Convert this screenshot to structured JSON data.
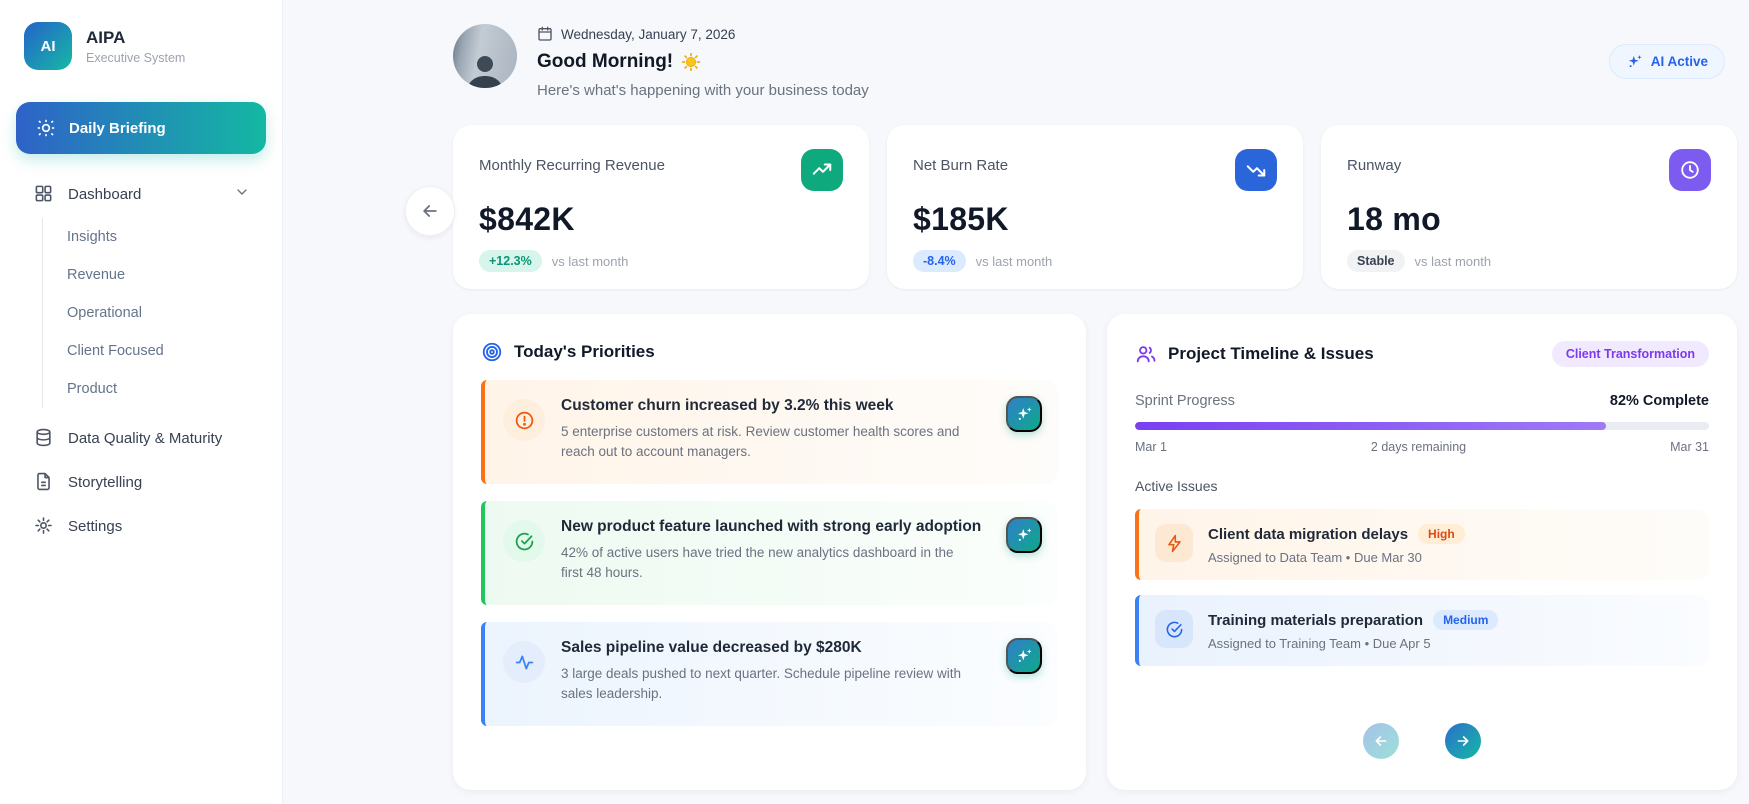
{
  "sidebar": {
    "logo_text": "AI",
    "title": "AIPA",
    "subtitle": "Executive System",
    "active_item": {
      "label": "Daily Briefing",
      "icon": "sun-icon"
    },
    "dashboard": {
      "label": "Dashboard",
      "icon": "grid-icon",
      "children": [
        "Insights",
        "Revenue",
        "Operational",
        "Client Focused",
        "Product"
      ]
    },
    "items": [
      {
        "label": "Data Quality & Maturity",
        "icon": "database-icon"
      },
      {
        "label": "Storytelling",
        "icon": "file-text-icon"
      },
      {
        "label": "Settings",
        "icon": "gear-icon"
      }
    ]
  },
  "header": {
    "date": "Wednesday, January 7, 2026",
    "date_icon": "calendar-icon",
    "greeting": "Good Morning!",
    "greeting_icon": "sun-emoji",
    "subtitle": "Here's what's happening with your business today",
    "ai_badge": "AI Active",
    "ai_badge_icon": "sparkles-icon"
  },
  "metrics": [
    {
      "label": "Monthly Recurring Revenue",
      "value": "$842K",
      "delta": "+12.3%",
      "note": "vs last month",
      "icon": "trending-up-icon",
      "accent": "#0fa97e"
    },
    {
      "label": "Net Burn Rate",
      "value": "$185K",
      "delta": "-8.4%",
      "note": "vs last month",
      "icon": "trending-down-icon",
      "accent": "#2a66d9"
    },
    {
      "label": "Runway",
      "value": "18 mo",
      "delta": "Stable",
      "note": "vs last month",
      "icon": "clock-icon",
      "accent": "#7c5cf0"
    }
  ],
  "priorities": {
    "title": "Today's Priorities",
    "title_icon": "target-icon",
    "items": [
      {
        "title": "Customer churn increased by 3.2% this week",
        "description": "5 enterprise customers at risk. Review customer health scores and reach out to account managers.",
        "severity": "warning",
        "icon": "alert-circle-icon",
        "action_icon": "sparkles-icon"
      },
      {
        "title": "New product feature launched with strong early adoption",
        "description": "42% of active users have tried the new analytics dashboard in the first 48 hours.",
        "severity": "success",
        "icon": "check-circle-icon",
        "action_icon": "sparkles-icon"
      },
      {
        "title": "Sales pipeline value decreased by $280K",
        "description": "3 large deals pushed to next quarter. Schedule pipeline review with sales leadership.",
        "severity": "info",
        "icon": "activity-icon",
        "action_icon": "sparkles-icon"
      }
    ]
  },
  "project": {
    "title": "Project Timeline & Issues",
    "title_icon": "users-icon",
    "badge": "Client Transformation",
    "sprint_label": "Sprint Progress",
    "sprint_complete": "82% Complete",
    "progress_pct": 82,
    "start_date": "Mar 1",
    "remaining": "2 days remaining",
    "end_date": "Mar 31",
    "issues_label": "Active Issues",
    "issues": [
      {
        "title": "Client data migration delays",
        "priority": "High",
        "meta": "Assigned to Data Team • Due Mar 30",
        "icon": "zap-icon"
      },
      {
        "title": "Training materials preparation",
        "priority": "Medium",
        "meta": "Assigned to Training Team • Due Apr 5",
        "icon": "check-circle-icon"
      }
    ]
  },
  "colors": {
    "accent_gradient_start": "#2e62c8",
    "accent_gradient_end": "#14b8a3",
    "progress_start": "#7b3ff2",
    "progress_end": "#9d7bf7",
    "warning": "#f97316",
    "success": "#22c55e",
    "info": "#3b82f6",
    "purple": "#7c3aed"
  }
}
